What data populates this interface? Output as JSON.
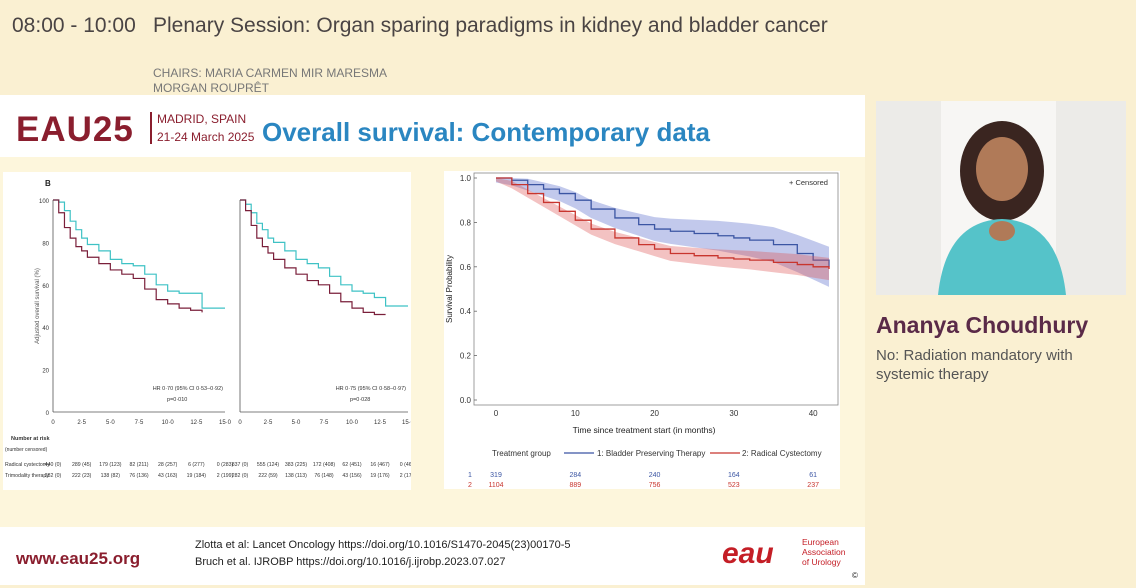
{
  "header": {
    "time": "08:00 - 10:00",
    "title": "Plenary Session: Organ sparing paradigms in kidney and bladder cancer",
    "chairs_line1": "CHAIRS: MARIA CARMEN MIR MARESMA",
    "chairs_line2": "MORGAN ROUPRÊT"
  },
  "slide": {
    "logo_text": "EAU25",
    "city": "MADRID, SPAIN",
    "dates": "21-24 March 2025",
    "title": "Overall survival: Contemporary data",
    "footer_url": "www.eau25.org",
    "ref1": "Zlotta et al: Lancet Oncology https://doi.org/10.1016/S1470-2045(23)00170-5",
    "ref2": "Bruch et al. IJROBP https://doi.org/10.1016/j.ijrobp.2023.07.027",
    "eau_mark": "eau",
    "eau_line1": "European",
    "eau_line2": "Association",
    "eau_line3": "of Urology",
    "copyright": "©"
  },
  "speaker": {
    "name": "Ananya Choudhury",
    "position": "No: Radiation mandatory with systemic therapy"
  },
  "colors": {
    "teal": "#3fc2c5",
    "maroon": "#7a1f3a",
    "blue": "#3b55a3",
    "red": "#c8352e"
  },
  "chart_data": [
    {
      "type": "line",
      "panel_label": "B",
      "ylabel": "Adjusted overall survival (%)",
      "xlabel": "",
      "ylim": [
        0,
        100
      ],
      "xlim": [
        0,
        15
      ],
      "y_ticks": [
        "0",
        "20",
        "40",
        "60",
        "80",
        "100"
      ],
      "x_ticks": [
        "0",
        "2·5",
        "5·0",
        "7·5",
        "10·0",
        "12·5",
        "15·0"
      ],
      "annotation_hr": "HR 0·70 (95% CI 0·53–0·92)",
      "annotation_p": "p=0·010",
      "risk_header": "Number at risk",
      "risk_sub": "(number censored)",
      "risk_rows": [
        {
          "label": "Radical cystectomy",
          "values": [
            "440 (0)",
            "289 (45)",
            "179 (123)",
            "82 (211)",
            "28 (257)",
            "6 (277)",
            "0 (283)"
          ]
        },
        {
          "label": "Trimodality therapy",
          "values": [
            "282 (0)",
            "222 (23)",
            "138 (82)",
            "76 (136)",
            "43 (163)",
            "19 (184)",
            "2 (199)"
          ]
        }
      ],
      "series": [
        {
          "name": "Trimodality therapy",
          "x": [
            0,
            0.5,
            1,
            1.5,
            2,
            2.5,
            3,
            4,
            5,
            6,
            7,
            8,
            9,
            10,
            11,
            12,
            13,
            14,
            15
          ],
          "y": [
            100,
            99,
            95,
            90,
            86,
            82,
            79,
            76,
            72,
            70,
            69,
            65,
            60,
            57,
            56,
            56,
            49,
            49,
            49
          ]
        },
        {
          "name": "Radical cystectomy",
          "x": [
            0,
            0.5,
            1,
            1.5,
            2,
            2.5,
            3,
            4,
            5,
            6,
            7,
            8,
            9,
            10,
            11,
            12,
            13
          ],
          "y": [
            100,
            94,
            87,
            82,
            78,
            76,
            73,
            70,
            67,
            65,
            63,
            58,
            53,
            51,
            49,
            48,
            47
          ]
        }
      ]
    },
    {
      "type": "line",
      "ylabel": "",
      "ylim": [
        0,
        100
      ],
      "xlim": [
        0,
        15
      ],
      "x_ticks": [
        "0",
        "2·5",
        "5·0",
        "7·5",
        "10·0",
        "12·5",
        "15·0"
      ],
      "annotation_hr": "HR 0·75 (95% CI 0·58–0·97)",
      "annotation_p": "p=0·028",
      "risk_rows": [
        {
          "label": "Radical cystectomy",
          "values": [
            "837 (0)",
            "555 (124)",
            "383 (225)",
            "172 (408)",
            "62 (451)",
            "16 (467)",
            "0 (467)"
          ]
        },
        {
          "label": "Trimodality therapy",
          "values": [
            "282 (0)",
            "222 (59)",
            "138 (113)",
            "76 (148)",
            "43 (156)",
            "19 (176)",
            "2 (177)"
          ]
        }
      ],
      "series": [
        {
          "name": "Trimodality therapy",
          "x": [
            0,
            0.5,
            1,
            1.5,
            2,
            2.5,
            3,
            4,
            5,
            6,
            7,
            8,
            9,
            10,
            11,
            12,
            13,
            14,
            15
          ],
          "y": [
            100,
            98,
            94,
            89,
            86,
            82,
            80,
            76,
            72,
            70,
            68,
            64,
            60,
            57,
            56,
            54,
            50,
            50,
            50
          ]
        },
        {
          "name": "Radical cystectomy",
          "x": [
            0,
            0.5,
            1,
            1.5,
            2,
            2.5,
            3,
            4,
            5,
            6,
            7,
            8,
            9,
            10,
            11,
            12,
            13
          ],
          "y": [
            100,
            95,
            88,
            82,
            78,
            75,
            72,
            68,
            65,
            62,
            60,
            56,
            52,
            49,
            47,
            46,
            46
          ]
        }
      ]
    },
    {
      "type": "line",
      "title": "",
      "ylabel": "Survival Probability",
      "xlabel": "Time since treatment start (in months)",
      "ylim": [
        0,
        1
      ],
      "xlim": [
        0,
        42
      ],
      "y_ticks": [
        "0.0",
        "0.2",
        "0.4",
        "0.6",
        "0.8",
        "1.0"
      ],
      "x_ticks": [
        "0",
        "10",
        "20",
        "30",
        "40"
      ],
      "legend_censored": "+ Censored",
      "legend_title": "Treatment group",
      "legend_items": [
        "1: Bladder Preserving Therapy",
        "2: Radical Cystectomy"
      ],
      "risk_rows": [
        {
          "label": "1",
          "values": [
            "319",
            "284",
            "240",
            "164",
            "61"
          ]
        },
        {
          "label": "2",
          "values": [
            "1104",
            "889",
            "756",
            "523",
            "237"
          ]
        }
      ],
      "series": [
        {
          "name": "1: Bladder Preserving Therapy",
          "x": [
            0,
            2,
            4,
            6,
            8,
            10,
            12,
            15,
            18,
            20,
            22,
            25,
            28,
            30,
            32,
            35,
            38,
            40,
            42
          ],
          "y": [
            1.0,
            0.99,
            0.97,
            0.95,
            0.93,
            0.9,
            0.86,
            0.82,
            0.79,
            0.77,
            0.76,
            0.75,
            0.74,
            0.73,
            0.72,
            0.7,
            0.66,
            0.63,
            0.6
          ]
        },
        {
          "name": "2: Radical Cystectomy",
          "x": [
            0,
            2,
            4,
            6,
            8,
            10,
            12,
            15,
            18,
            20,
            22,
            25,
            28,
            30,
            32,
            35,
            38,
            40,
            42
          ],
          "y": [
            1.0,
            0.97,
            0.93,
            0.89,
            0.85,
            0.81,
            0.77,
            0.73,
            0.7,
            0.68,
            0.66,
            0.65,
            0.64,
            0.635,
            0.63,
            0.62,
            0.61,
            0.6,
            0.59
          ]
        }
      ]
    }
  ]
}
